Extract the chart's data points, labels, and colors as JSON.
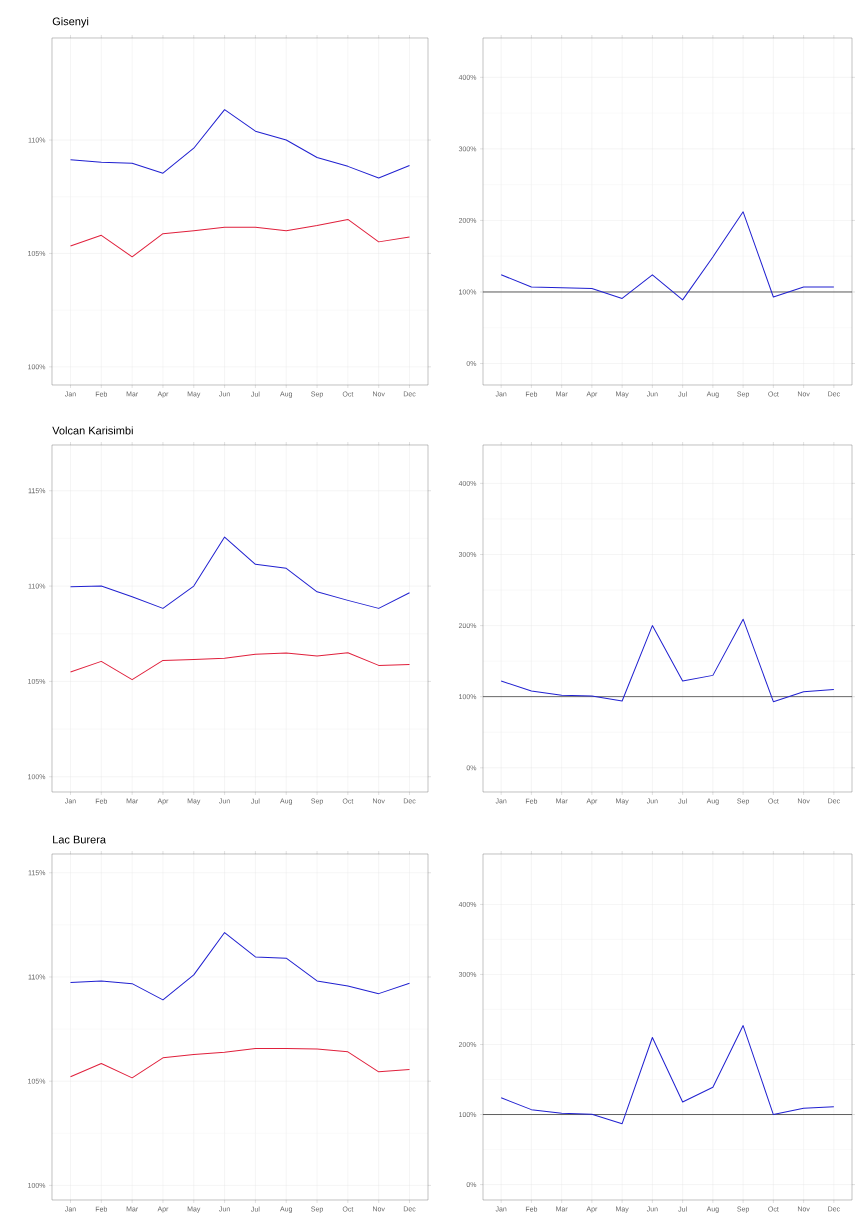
{
  "chart_data": [
    {
      "type": "line",
      "title": "Gisenyi",
      "categories": [
        "Jan",
        "Feb",
        "Mar",
        "Apr",
        "May",
        "Jun",
        "Jul",
        "Aug",
        "Sep",
        "Oct",
        "Nov",
        "Dec"
      ],
      "ylim": [
        99.2,
        114.5
      ],
      "yticks": [
        {
          "value": 100,
          "label": "100%"
        },
        {
          "value": 105,
          "label": "105%"
        },
        {
          "value": 110,
          "label": "110%"
        }
      ],
      "grid": true,
      "series": [
        {
          "color": "#2020d0",
          "values": [
            109.13,
            109.02,
            108.98,
            108.54,
            109.64,
            111.34,
            110.39,
            110.0,
            109.23,
            108.84,
            108.33,
            108.88
          ]
        },
        {
          "color": "#e0203c",
          "values": [
            105.33,
            105.8,
            104.85,
            105.87,
            106.0,
            106.16,
            106.16,
            106.0,
            106.23,
            106.5,
            105.51,
            105.73
          ]
        }
      ]
    },
    {
      "type": "line",
      "categories": [
        "Jan",
        "Feb",
        "Mar",
        "Apr",
        "May",
        "Jun",
        "Jul",
        "Aug",
        "Sep",
        "Oct",
        "Nov",
        "Dec"
      ],
      "ylim": [
        -30,
        455
      ],
      "yticks": [
        {
          "value": 0,
          "label": "0%"
        },
        {
          "value": 100,
          "label": "100%"
        },
        {
          "value": 200,
          "label": "200%"
        },
        {
          "value": 300,
          "label": "300%"
        },
        {
          "value": 400,
          "label": "400%"
        }
      ],
      "grid": true,
      "ref_lines": [
        {
          "axis": "y",
          "value": 100,
          "color": "#333333"
        }
      ],
      "series": [
        {
          "color": "#2020d0",
          "values": [
            124,
            107,
            106,
            105,
            91,
            124,
            89,
            149,
            212,
            93,
            107,
            107
          ]
        }
      ]
    },
    {
      "type": "line",
      "title": "Volcan Karisimbi",
      "categories": [
        "Jan",
        "Feb",
        "Mar",
        "Apr",
        "May",
        "Jun",
        "Jul",
        "Aug",
        "Sep",
        "Oct",
        "Nov",
        "Dec"
      ],
      "ylim": [
        99.2,
        117.4
      ],
      "yticks": [
        {
          "value": 100,
          "label": "100%"
        },
        {
          "value": 105,
          "label": "105%"
        },
        {
          "value": 110,
          "label": "110%"
        },
        {
          "value": 115,
          "label": "115%"
        }
      ],
      "grid": true,
      "series": [
        {
          "color": "#2020d0",
          "values": [
            109.97,
            110.0,
            109.44,
            108.83,
            110.0,
            112.57,
            111.14,
            110.93,
            109.7,
            109.25,
            108.83,
            109.65
          ]
        },
        {
          "color": "#e0203c",
          "values": [
            105.49,
            106.05,
            105.09,
            106.1,
            106.15,
            106.22,
            106.42,
            106.49,
            106.33,
            106.5,
            105.84,
            105.89
          ]
        }
      ]
    },
    {
      "type": "line",
      "categories": [
        "Jan",
        "Feb",
        "Mar",
        "Apr",
        "May",
        "Jun",
        "Jul",
        "Aug",
        "Sep",
        "Oct",
        "Nov",
        "Dec"
      ],
      "ylim": [
        -34,
        454
      ],
      "yticks": [
        {
          "value": 0,
          "label": "0%"
        },
        {
          "value": 100,
          "label": "100%"
        },
        {
          "value": 200,
          "label": "200%"
        },
        {
          "value": 300,
          "label": "300%"
        },
        {
          "value": 400,
          "label": "400%"
        }
      ],
      "grid": true,
      "ref_lines": [
        {
          "axis": "y",
          "value": 100,
          "color": "#333333"
        }
      ],
      "series": [
        {
          "color": "#2020d0",
          "values": [
            122,
            108,
            102,
            101,
            94,
            200,
            122,
            130,
            209,
            93,
            107,
            110
          ]
        }
      ]
    },
    {
      "type": "line",
      "title": "Lac Burera",
      "categories": [
        "Jan",
        "Feb",
        "Mar",
        "Apr",
        "May",
        "Jun",
        "Jul",
        "Aug",
        "Sep",
        "Oct",
        "Nov",
        "Dec"
      ],
      "ylim": [
        99.3,
        115.9
      ],
      "yticks": [
        {
          "value": 100,
          "label": "100%"
        },
        {
          "value": 105,
          "label": "105%"
        },
        {
          "value": 110,
          "label": "110%"
        },
        {
          "value": 115,
          "label": "115%"
        }
      ],
      "grid": true,
      "series": [
        {
          "color": "#2020d0",
          "values": [
            109.73,
            109.81,
            109.68,
            108.9,
            110.1,
            112.13,
            110.96,
            110.9,
            109.81,
            109.57,
            109.2,
            109.7
          ]
        },
        {
          "color": "#e0203c",
          "values": [
            105.21,
            105.85,
            105.16,
            106.12,
            106.28,
            106.39,
            106.57,
            106.57,
            106.55,
            106.41,
            105.45,
            105.56
          ]
        }
      ]
    },
    {
      "type": "line",
      "categories": [
        "Jan",
        "Feb",
        "Mar",
        "Apr",
        "May",
        "Jun",
        "Jul",
        "Aug",
        "Sep",
        "Oct",
        "Nov",
        "Dec"
      ],
      "ylim": [
        -22,
        472
      ],
      "yticks": [
        {
          "value": 0,
          "label": "0%"
        },
        {
          "value": 100,
          "label": "100%"
        },
        {
          "value": 200,
          "label": "200%"
        },
        {
          "value": 300,
          "label": "300%"
        },
        {
          "value": 400,
          "label": "400%"
        }
      ],
      "grid": true,
      "ref_lines": [
        {
          "axis": "y",
          "value": 100,
          "color": "#333333"
        }
      ],
      "series": [
        {
          "color": "#2020d0",
          "values": [
            124,
            107,
            102,
            100.5,
            87,
            210,
            118,
            139,
            227,
            100,
            109,
            111
          ]
        }
      ]
    }
  ]
}
